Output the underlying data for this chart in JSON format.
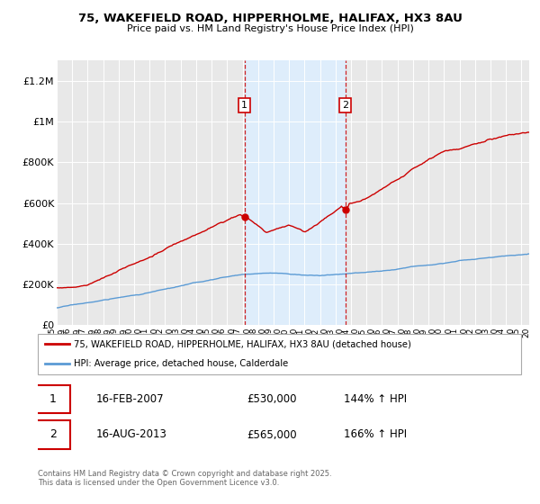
{
  "title": "75, WAKEFIELD ROAD, HIPPERHOLME, HALIFAX, HX3 8AU",
  "subtitle": "Price paid vs. HM Land Registry's House Price Index (HPI)",
  "ylim": [
    0,
    1300000
  ],
  "yticks": [
    0,
    200000,
    400000,
    600000,
    800000,
    1000000,
    1200000
  ],
  "ytick_labels": [
    "£0",
    "£200K",
    "£400K",
    "£600K",
    "£800K",
    "£1M",
    "£1.2M"
  ],
  "hpi_color": "#5b9bd5",
  "price_color": "#cc0000",
  "vline_color": "#cc0000",
  "shade_color": "#ddeeff",
  "marker1_year": 2007.12,
  "marker2_year": 2013.62,
  "marker1_price_val": 530000,
  "marker2_price_val": 565000,
  "marker1_label": "16-FEB-2007",
  "marker2_label": "16-AUG-2013",
  "marker1_price": "£530,000",
  "marker2_price": "£565,000",
  "marker1_hpi": "144% ↑ HPI",
  "marker2_hpi": "166% ↑ HPI",
  "legend_line1": "75, WAKEFIELD ROAD, HIPPERHOLME, HALIFAX, HX3 8AU (detached house)",
  "legend_line2": "HPI: Average price, detached house, Calderdale",
  "footnote": "Contains HM Land Registry data © Crown copyright and database right 2025.\nThis data is licensed under the Open Government Licence v3.0.",
  "background_color": "#ffffff",
  "plot_bg_color": "#e8e8e8",
  "xstart": 1995,
  "xend": 2025.5
}
